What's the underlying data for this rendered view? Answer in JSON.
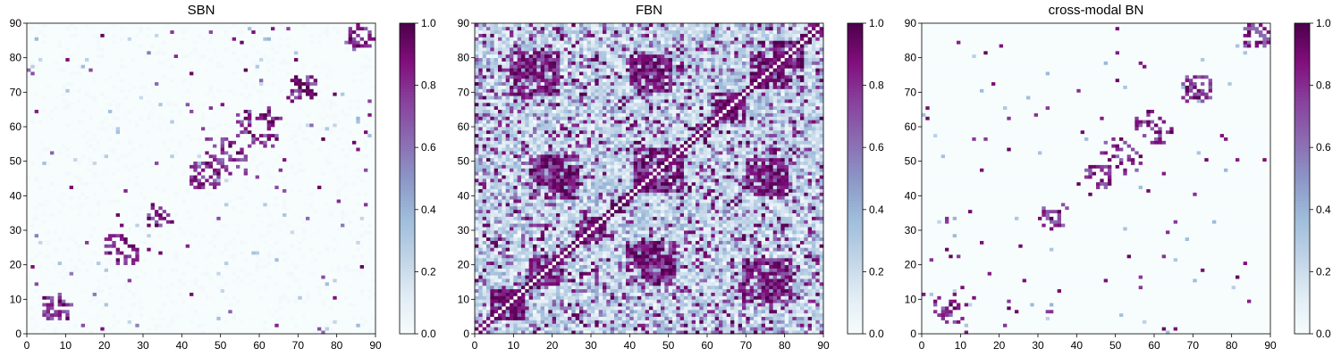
{
  "chart_data": [
    {
      "type": "heatmap",
      "title": "SBN",
      "xlim": [
        0,
        90
      ],
      "ylim": [
        0,
        90
      ],
      "x_ticks": [
        "0",
        "10",
        "20",
        "30",
        "40",
        "50",
        "60",
        "70",
        "80",
        "90"
      ],
      "y_ticks": [
        "0",
        "10",
        "20",
        "30",
        "40",
        "50",
        "60",
        "70",
        "80",
        "90"
      ],
      "colorbar": {
        "range": [
          0.0,
          1.0
        ],
        "ticks": [
          "0.0",
          "0.2",
          "0.4",
          "0.6",
          "0.8",
          "1.0"
        ],
        "colormap": "BuPu"
      },
      "matrix_size": 90,
      "density": "sparse",
      "noise_level": 0.03,
      "clusters": [
        [
          46,
          45,
          3
        ],
        [
          50,
          52,
          4
        ],
        [
          60,
          58,
          4
        ],
        [
          71,
          70,
          3
        ],
        [
          86,
          86,
          3
        ],
        [
          6,
          8,
          3
        ],
        [
          23,
          25,
          3
        ],
        [
          33,
          34,
          3
        ]
      ],
      "seed": 11
    },
    {
      "type": "heatmap",
      "title": "FBN",
      "xlim": [
        0,
        90
      ],
      "ylim": [
        0,
        90
      ],
      "x_ticks": [
        "0",
        "10",
        "20",
        "30",
        "40",
        "50",
        "60",
        "70",
        "80",
        "90"
      ],
      "y_ticks": [
        "0",
        "10",
        "20",
        "30",
        "40",
        "50",
        "60",
        "70",
        "80",
        "90"
      ],
      "colorbar": {
        "range": [
          0.0,
          1.0
        ],
        "ticks": [
          "0.0",
          "0.2",
          "0.4",
          "0.6",
          "0.8",
          "1.0"
        ],
        "colormap": "BuPu"
      },
      "matrix_size": 90,
      "density": "dense",
      "noise_level": 0.35,
      "clusters": [
        [
          47,
          47,
          6
        ],
        [
          76,
          76,
          5
        ],
        [
          65,
          65,
          4
        ],
        [
          80,
          80,
          4
        ],
        [
          8,
          8,
          4
        ],
        [
          18,
          18,
          4
        ],
        [
          30,
          30,
          3
        ],
        [
          45,
          75,
          5
        ],
        [
          75,
          45,
          5
        ],
        [
          15,
          75,
          6
        ],
        [
          75,
          15,
          6
        ],
        [
          20,
          45,
          6
        ],
        [
          45,
          20,
          6
        ]
      ],
      "seed": 23
    },
    {
      "type": "heatmap",
      "title": "cross-modal BN",
      "xlim": [
        0,
        90
      ],
      "ylim": [
        0,
        90
      ],
      "x_ticks": [
        "0",
        "10",
        "20",
        "30",
        "40",
        "50",
        "60",
        "70",
        "80",
        "90"
      ],
      "y_ticks": [
        "0",
        "10",
        "20",
        "30",
        "40",
        "50",
        "60",
        "70",
        "80",
        "90"
      ],
      "colorbar": {
        "range": [
          0.0,
          1.0
        ],
        "ticks": [
          "0.0",
          "0.2",
          "0.4",
          "0.6",
          "0.8",
          "1.0"
        ],
        "colormap": "BuPu"
      },
      "matrix_size": 90,
      "density": "very-sparse",
      "noise_level": 0.0,
      "clusters": [
        [
          46,
          45,
          3
        ],
        [
          50,
          52,
          4
        ],
        [
          60,
          58,
          3
        ],
        [
          71,
          70,
          3
        ],
        [
          86,
          86,
          3
        ],
        [
          6,
          8,
          3
        ],
        [
          33,
          34,
          3
        ]
      ],
      "seed": 11
    }
  ],
  "colors": {
    "bupu": [
      "#f7fcfd",
      "#e0ecf4",
      "#bfd3e6",
      "#9ebcda",
      "#8c96c6",
      "#8c6bb1",
      "#88419d",
      "#810f7c",
      "#4d004b"
    ]
  }
}
